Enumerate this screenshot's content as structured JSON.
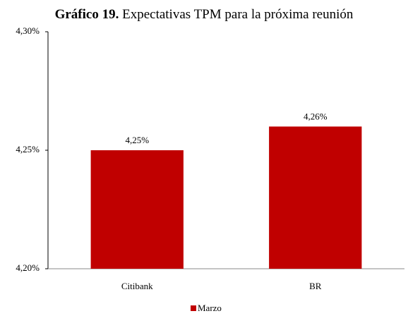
{
  "chart_data": {
    "type": "bar",
    "title_prefix": "Gráfico 19.",
    "title": "Expectativas TPM para la próxima reunión",
    "categories": [
      "Citibank",
      "BR"
    ],
    "series": [
      {
        "name": "Marzo",
        "color": "#c00000",
        "values": [
          4.25,
          4.26
        ],
        "value_labels": [
          "4,25%",
          "4,26%"
        ]
      }
    ],
    "ylim": [
      4.2,
      4.3
    ],
    "yticks": [
      {
        "value": 4.2,
        "label": "4,20%"
      },
      {
        "value": 4.25,
        "label": "4,25%"
      },
      {
        "value": 4.3,
        "label": "4,30%"
      }
    ],
    "grid": false,
    "legend": "bottom"
  }
}
